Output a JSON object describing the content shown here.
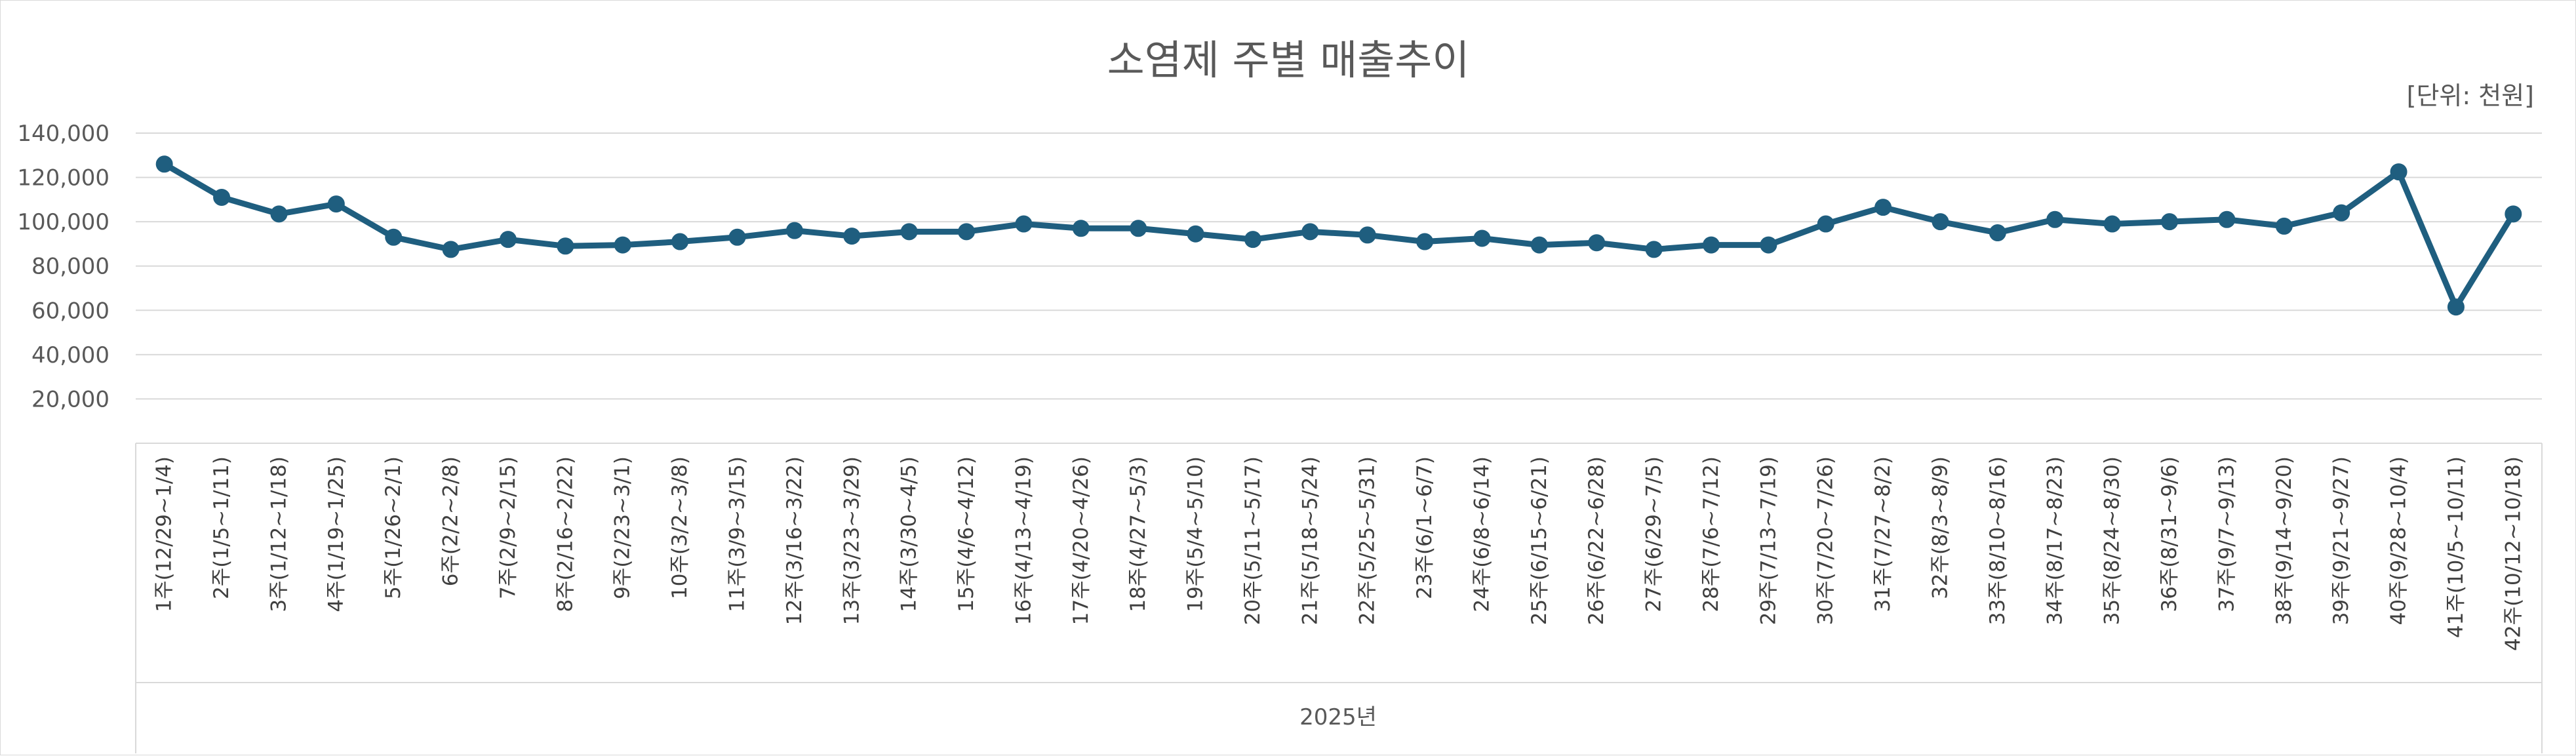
{
  "chart_data": {
    "type": "line",
    "title": "소염제 주별 매출추이",
    "unit_label": "[단위: 천원]",
    "group_label": "2025년",
    "ylim": [
      0,
      140000
    ],
    "yticks": [
      20000,
      40000,
      60000,
      80000,
      100000,
      120000,
      140000
    ],
    "ytick_labels": [
      "20,000",
      "40,000",
      "60,000",
      "80,000",
      "100,000",
      "120,000",
      "140,000"
    ],
    "grid": true,
    "color": "#1f5e7f",
    "categories": [
      "1주(12/29~1/4)",
      "2주(1/5~1/11)",
      "3주(1/12~1/18)",
      "4주(1/19~1/25)",
      "5주(1/26~2/1)",
      "6주(2/2~2/8)",
      "7주(2/9~2/15)",
      "8주(2/16~2/22)",
      "9주(2/23~3/1)",
      "10주(3/2~3/8)",
      "11주(3/9~3/15)",
      "12주(3/16~3/22)",
      "13주(3/23~3/29)",
      "14주(3/30~4/5)",
      "15주(4/6~4/12)",
      "16주(4/13~4/19)",
      "17주(4/20~4/26)",
      "18주(4/27~5/3)",
      "19주(5/4~5/10)",
      "20주(5/11~5/17)",
      "21주(5/18~5/24)",
      "22주(5/25~5/31)",
      "23주(6/1~6/7)",
      "24주(6/8~6/14)",
      "25주(6/15~6/21)",
      "26주(6/22~6/28)",
      "27주(6/29~7/5)",
      "28주(7/6~7/12)",
      "29주(7/13~7/19)",
      "30주(7/20~7/26)",
      "31주(7/27~8/2)",
      "32주(8/3~8/9)",
      "33주(8/10~8/16)",
      "34주(8/17~8/23)",
      "35주(8/24~8/30)",
      "36주(8/31~9/6)",
      "37주(9/7~9/13)",
      "38주(9/14~9/20)",
      "39주(9/21~9/27)",
      "40주(9/28~10/4)",
      "41주(10/5~10/11)",
      "42주(10/12~10/18)"
    ],
    "series": [
      {
        "values": [
          126000,
          111000,
          103500,
          108000,
          93000,
          87500,
          92000,
          89000,
          89500,
          91000,
          93000,
          96000,
          93500,
          95500,
          95500,
          99000,
          97000,
          97000,
          94500,
          92000,
          95500,
          94000,
          91000,
          92500,
          89500,
          90500,
          87500,
          89500,
          89500,
          99000,
          106500,
          100000,
          95000,
          101000,
          99000,
          100000,
          101000,
          98000,
          104000,
          122500,
          61500,
          103500
        ]
      }
    ]
  }
}
